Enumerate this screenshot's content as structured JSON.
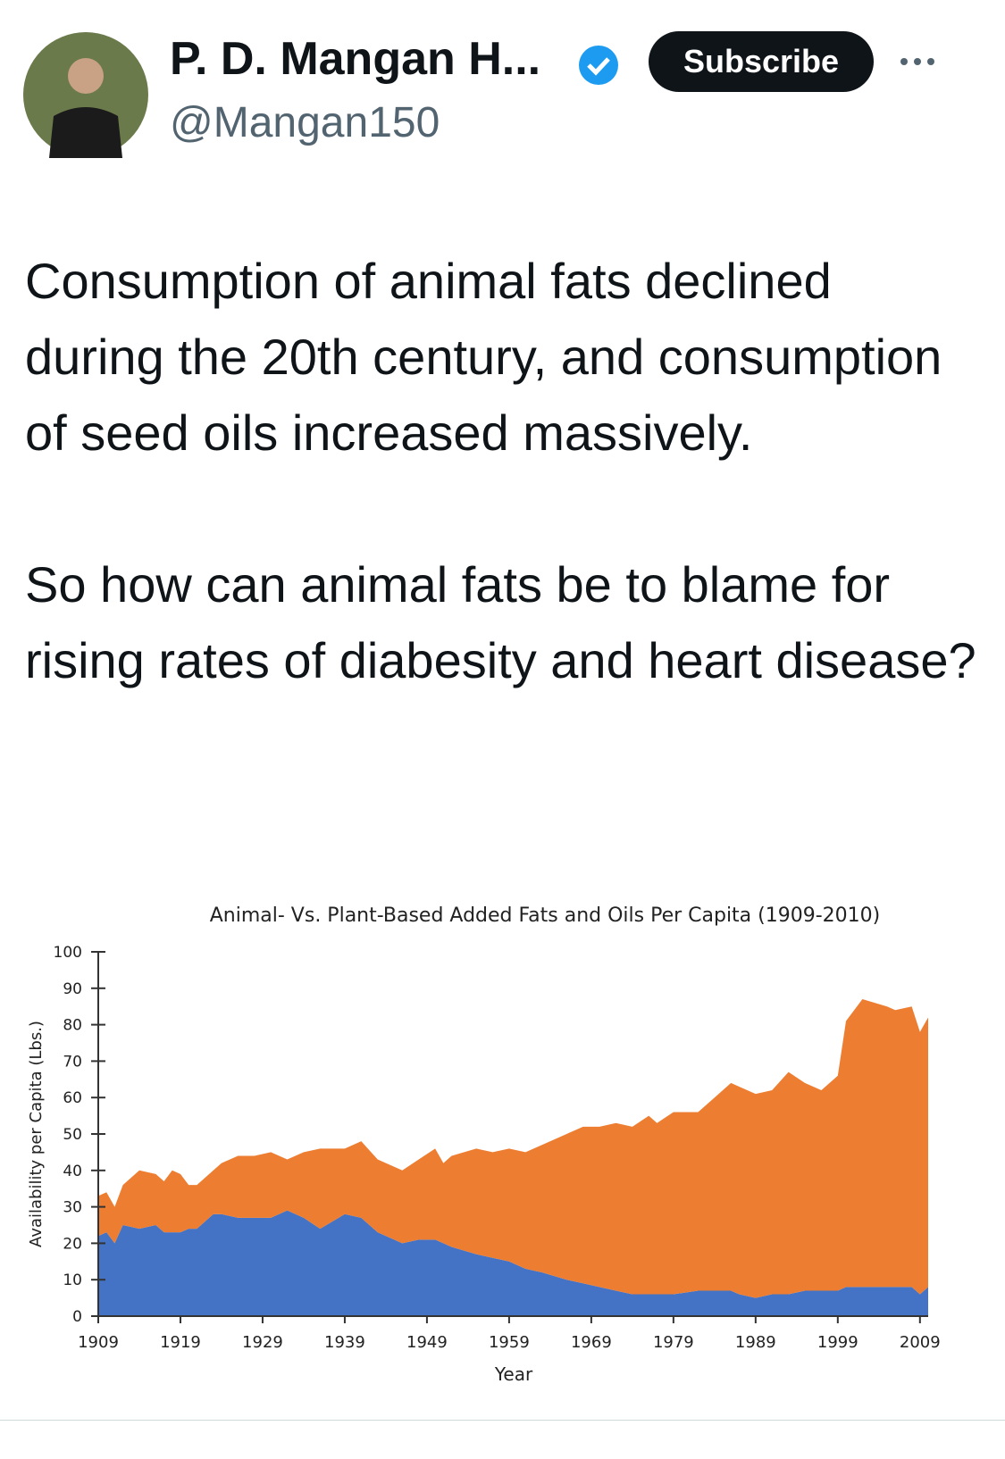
{
  "tweet": {
    "name": "P. D. Mangan H...",
    "handle": "@Mangan150",
    "button": "Subscribe",
    "paragraphs": [
      "Consumption of animal fats declined during the 20th century, and consumption of seed oils increased massively.",
      "So how can animal fats be to blame for rising rates of diabesity and heart disease?"
    ]
  },
  "chart_data": {
    "type": "stacked_area",
    "title": "Animal- Vs. Plant-Based Added Fats and Oils Per Capita (1909-2010)",
    "x_label": "Year",
    "y_label": "Availability per Capita (Lbs.)",
    "x": [
      1909,
      1910,
      1911,
      1912,
      1914,
      1916,
      1917,
      1918,
      1919,
      1920,
      1921,
      1923,
      1924,
      1926,
      1928,
      1930,
      1932,
      1934,
      1936,
      1939,
      1941,
      1943,
      1946,
      1948,
      1950,
      1951,
      1952,
      1955,
      1957,
      1959,
      1961,
      1963,
      1966,
      1968,
      1970,
      1972,
      1974,
      1976,
      1977,
      1979,
      1982,
      1984,
      1986,
      1987,
      1989,
      1991,
      1993,
      1995,
      1997,
      1999,
      2000,
      2002,
      2005,
      2006,
      2008,
      2009,
      2010
    ],
    "series": [
      {
        "color": "#4472c4",
        "values": [
          22,
          23,
          20,
          25,
          24,
          25,
          23,
          23,
          23,
          24,
          24,
          28,
          28,
          27,
          27,
          27,
          29,
          27,
          24,
          28,
          27,
          23,
          20,
          21,
          21,
          20,
          19,
          17,
          16,
          15,
          13,
          12,
          10,
          9,
          8,
          7,
          6,
          6,
          6,
          6,
          7,
          7,
          7,
          6,
          5,
          6,
          6,
          7,
          7,
          7,
          8,
          8,
          8,
          8,
          8,
          6,
          8
        ]
      },
      {
        "color": "#ed7d31",
        "values": [
          11,
          11,
          10,
          11,
          16,
          14,
          14,
          17,
          16,
          12,
          12,
          12,
          14,
          17,
          17,
          18,
          14,
          18,
          22,
          18,
          21,
          20,
          20,
          22,
          25,
          22,
          25,
          29,
          29,
          31,
          32,
          35,
          40,
          43,
          44,
          46,
          46,
          49,
          47,
          50,
          49,
          53,
          57,
          57,
          56,
          56,
          61,
          57,
          55,
          59,
          73,
          79,
          77,
          76,
          77,
          72,
          74
        ]
      }
    ],
    "xlim": [
      1909,
      2010
    ],
    "xticks": [
      1909,
      1919,
      1929,
      1939,
      1949,
      1959,
      1969,
      1979,
      1989,
      1999,
      2009
    ],
    "ylim": [
      0,
      100
    ],
    "yticks": [
      0,
      10,
      20,
      30,
      40,
      50,
      60,
      70,
      80,
      90,
      100
    ]
  }
}
